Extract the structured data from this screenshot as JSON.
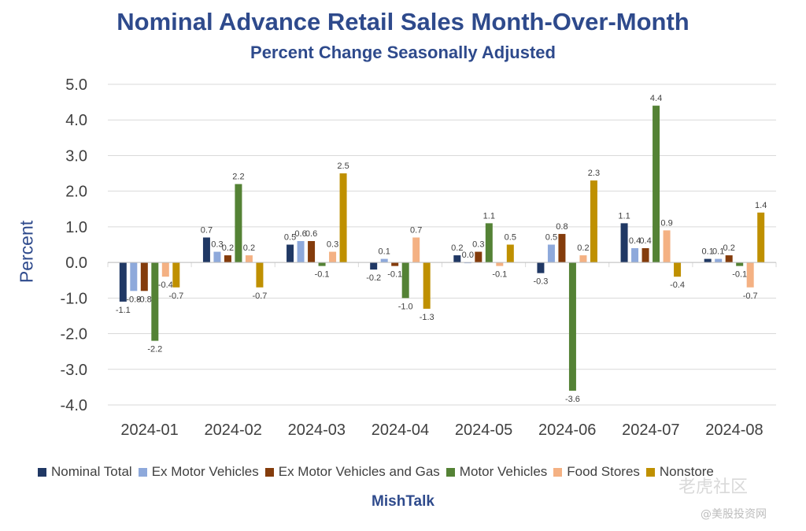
{
  "chart_data": {
    "type": "bar",
    "title": "Nominal Advance Retail Sales Month-Over-Month",
    "subtitle": "Percent Change Seasonally Adjusted",
    "xlabel": "",
    "ylabel": "Percent",
    "ylim": [
      -4.0,
      5.0
    ],
    "yticks": [
      "5.0",
      "4.0",
      "3.0",
      "2.0",
      "1.0",
      "0.0",
      "-1.0",
      "-2.0",
      "-3.0",
      "-4.0"
    ],
    "grid": true,
    "legend_position": "bottom",
    "categories": [
      "2024-01",
      "2024-02",
      "2024-03",
      "2024-04",
      "2024-05",
      "2024-06",
      "2024-07",
      "2024-08"
    ],
    "series": [
      {
        "name": "Nominal Total",
        "color": "#203864",
        "values": [
          -1.1,
          0.7,
          0.5,
          -0.2,
          0.2,
          -0.3,
          1.1,
          0.1
        ]
      },
      {
        "name": "Ex Motor Vehicles",
        "color": "#8EA9DB",
        "values": [
          -0.8,
          0.3,
          0.6,
          0.1,
          0.0,
          0.5,
          0.4,
          0.1
        ]
      },
      {
        "name": "Ex Motor Vehicles and Gas",
        "color": "#843C0C",
        "values": [
          -0.8,
          0.2,
          0.6,
          -0.1,
          0.3,
          0.8,
          0.4,
          0.2
        ]
      },
      {
        "name": "Motor Vehicles",
        "color": "#548235",
        "values": [
          -2.2,
          2.2,
          -0.1,
          -1.0,
          1.1,
          -3.6,
          4.4,
          -0.1
        ]
      },
      {
        "name": "Food Stores",
        "color": "#F4B183",
        "values": [
          -0.4,
          0.2,
          0.3,
          0.7,
          -0.1,
          0.2,
          0.9,
          -0.7
        ]
      },
      {
        "name": "Nonstore",
        "color": "#BF9000",
        "values": [
          -0.7,
          -0.7,
          2.5,
          -1.3,
          0.5,
          2.3,
          -0.4,
          1.4
        ]
      }
    ]
  },
  "source": "MishTalk",
  "watermark": {
    "text": "老虎社区",
    "subtext": "@美股投资网"
  }
}
